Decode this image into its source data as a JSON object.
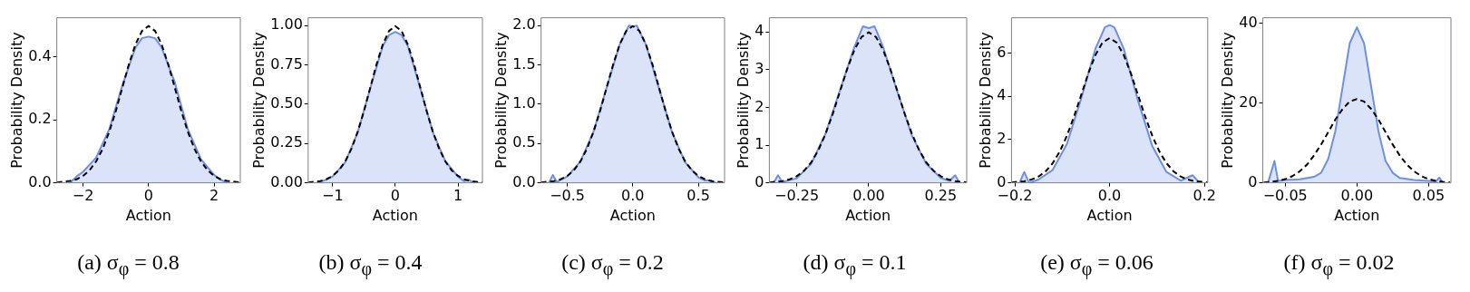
{
  "chart_data": [
    {
      "type": "area",
      "title": "(a) σ$_{φ}$ = 0.8",
      "xlabel": "Action",
      "ylabel": "Probability Density",
      "xlim": [
        -2.8,
        2.8
      ],
      "ylim": [
        0,
        0.525
      ],
      "xticks": [
        {
          "value": -2,
          "label": "−2"
        },
        0,
        2
      ],
      "yticks": [
        {
          "value": 0,
          "label": "0.0"
        },
        0.2,
        0.4
      ],
      "series": [
        {
          "type": "area",
          "color": "#6e8fe6",
          "x": [
            -2.4,
            -2.2,
            -2.0,
            -1.6,
            -1.2,
            -0.8,
            -0.4,
            -0.2,
            0,
            0.2,
            0.4,
            0.8,
            1.2,
            1.6,
            2.0,
            2.2,
            2.4
          ],
          "values": [
            0,
            0.02,
            0.035,
            0.08,
            0.17,
            0.31,
            0.43,
            0.46,
            0.465,
            0.46,
            0.43,
            0.32,
            0.17,
            0.075,
            0.025,
            0.01,
            0
          ]
        },
        {
          "type": "line",
          "color": "#000000",
          "line_style": "dashed",
          "x": [
            -2.8,
            -2.4,
            -2.2,
            -2.0,
            -1.8,
            -1.6,
            -1.4,
            -1.2,
            -1.0,
            -0.8,
            -0.6,
            -0.4,
            -0.2,
            0,
            0.2,
            0.4,
            0.6,
            0.8,
            1.0,
            1.2,
            1.4,
            1.6,
            1.8,
            2.0,
            2.2,
            2.4,
            2.8
          ],
          "values": [
            0.001,
            0.006,
            0.011,
            0.022,
            0.04,
            0.068,
            0.108,
            0.162,
            0.228,
            0.303,
            0.377,
            0.44,
            0.483,
            0.499,
            0.483,
            0.44,
            0.377,
            0.303,
            0.228,
            0.162,
            0.108,
            0.068,
            0.04,
            0.022,
            0.011,
            0.006,
            0.001
          ]
        }
      ]
    },
    {
      "type": "area",
      "title": "(b) σ$_{φ}$ = 0.4",
      "xlabel": "Action",
      "ylabel": "Probability Density",
      "xlim": [
        -1.39,
        1.39
      ],
      "ylim": [
        0,
        1.05
      ],
      "xticks": [
        {
          "value": -1,
          "label": "−1"
        },
        0,
        1
      ],
      "yticks": [
        {
          "value": 0,
          "label": "0.00"
        },
        0.25,
        {
          "value": 0.5,
          "label": "0.50"
        },
        0.75,
        {
          "value": 1,
          "label": "1.00"
        }
      ],
      "series": [
        {
          "type": "area",
          "color": "#6e8fe6",
          "x": [
            -1.25,
            -1.1,
            -1.0,
            -0.8,
            -0.6,
            -0.4,
            -0.2,
            -0.1,
            0,
            0.1,
            0.2,
            0.4,
            0.6,
            0.8,
            1.0,
            1.1,
            1.17,
            1.25
          ],
          "values": [
            0,
            0.02,
            0.04,
            0.13,
            0.32,
            0.6,
            0.87,
            0.94,
            0.96,
            0.94,
            0.87,
            0.6,
            0.32,
            0.135,
            0.04,
            0.01,
            0.02,
            0
          ]
        },
        {
          "type": "line",
          "color": "#000000",
          "line_style": "dashed",
          "x": [
            -1.39,
            -1.2,
            -1.1,
            -1.0,
            -0.9,
            -0.8,
            -0.7,
            -0.6,
            -0.5,
            -0.4,
            -0.3,
            -0.2,
            -0.1,
            0,
            0.1,
            0.2,
            0.3,
            0.4,
            0.5,
            0.6,
            0.7,
            0.8,
            0.9,
            1.0,
            1.1,
            1.2,
            1.39
          ],
          "values": [
            0.002,
            0.011,
            0.023,
            0.044,
            0.079,
            0.135,
            0.216,
            0.324,
            0.456,
            0.605,
            0.753,
            0.88,
            0.966,
            0.997,
            0.966,
            0.88,
            0.753,
            0.605,
            0.456,
            0.324,
            0.216,
            0.135,
            0.079,
            0.044,
            0.023,
            0.011,
            0.002
          ]
        }
      ]
    },
    {
      "type": "area",
      "title": "(c) σ$_{φ}$ = 0.2",
      "xlabel": "Action",
      "ylabel": "Probability Density",
      "xlim": [
        -0.7,
        0.7
      ],
      "ylim": [
        0,
        2.1
      ],
      "xticks": [
        {
          "value": -0.5,
          "label": "−0.5"
        },
        {
          "value": 0,
          "label": "0.0"
        },
        0.5
      ],
      "yticks": [
        {
          "value": 0,
          "label": "0.0"
        },
        0.5,
        {
          "value": 1,
          "label": "1.0"
        },
        1.5,
        {
          "value": 2,
          "label": "2.0"
        }
      ],
      "series": [
        {
          "type": "area",
          "color": "#6e8fe6",
          "x": [
            -0.64,
            -0.61,
            -0.58,
            -0.5,
            -0.4,
            -0.3,
            -0.2,
            -0.1,
            -0.03,
            0,
            0.03,
            0.1,
            0.2,
            0.3,
            0.4,
            0.5,
            0.55,
            0.6,
            0.63
          ],
          "values": [
            0,
            0.1,
            0.01,
            0.08,
            0.27,
            0.65,
            1.21,
            1.76,
            2.0,
            1.99,
            2.0,
            1.76,
            1.2,
            0.64,
            0.26,
            0.07,
            0.03,
            0.03,
            0
          ]
        },
        {
          "type": "line",
          "color": "#000000",
          "line_style": "dashed",
          "x": [
            -0.7,
            -0.6,
            -0.55,
            -0.5,
            -0.45,
            -0.4,
            -0.35,
            -0.3,
            -0.25,
            -0.2,
            -0.15,
            -0.1,
            -0.05,
            0,
            0.05,
            0.1,
            0.15,
            0.2,
            0.25,
            0.3,
            0.35,
            0.4,
            0.45,
            0.5,
            0.55,
            0.6,
            0.7
          ],
          "values": [
            0.004,
            0.022,
            0.045,
            0.088,
            0.159,
            0.27,
            0.432,
            0.648,
            0.913,
            1.21,
            1.506,
            1.761,
            1.934,
            1.995,
            1.934,
            1.761,
            1.506,
            1.21,
            0.913,
            0.648,
            0.432,
            0.27,
            0.159,
            0.088,
            0.045,
            0.022,
            0.004
          ]
        }
      ]
    },
    {
      "type": "area",
      "title": "(d) σ$_{φ}$ = 0.1",
      "xlabel": "Action",
      "ylabel": "Probability Density",
      "xlim": [
        -0.345,
        0.34
      ],
      "ylim": [
        0,
        4.375
      ],
      "xticks": [
        {
          "value": -0.25,
          "label": "−0.25"
        },
        {
          "value": 0,
          "label": "0.00"
        },
        0.25
      ],
      "yticks": [
        0,
        1,
        2,
        3,
        4
      ],
      "series": [
        {
          "type": "area",
          "color": "#6e8fe6",
          "x": [
            -0.33,
            -0.315,
            -0.3,
            -0.25,
            -0.2,
            -0.15,
            -0.1,
            -0.05,
            -0.02,
            0,
            0.02,
            0.05,
            0.1,
            0.15,
            0.2,
            0.25,
            0.28,
            0.3,
            0.315
          ],
          "values": [
            0,
            0.2,
            0.02,
            0.12,
            0.5,
            1.3,
            2.45,
            3.6,
            4.15,
            4.1,
            4.15,
            3.6,
            2.4,
            1.25,
            0.5,
            0.13,
            0.05,
            0.2,
            0
          ]
        },
        {
          "type": "line",
          "color": "#000000",
          "line_style": "dashed",
          "x": [
            -0.345,
            -0.3,
            -0.275,
            -0.25,
            -0.225,
            -0.2,
            -0.175,
            -0.15,
            -0.125,
            -0.1,
            -0.075,
            -0.05,
            -0.025,
            0,
            0.025,
            0.05,
            0.075,
            0.1,
            0.125,
            0.15,
            0.175,
            0.2,
            0.225,
            0.25,
            0.275,
            0.3,
            0.34
          ],
          "values": [
            0.01,
            0.044,
            0.091,
            0.175,
            0.318,
            0.54,
            0.863,
            1.296,
            1.827,
            2.42,
            3.012,
            3.521,
            3.867,
            3.99,
            3.867,
            3.521,
            3.012,
            2.42,
            1.827,
            1.296,
            0.863,
            0.54,
            0.318,
            0.175,
            0.091,
            0.044,
            0.01
          ]
        }
      ]
    },
    {
      "type": "area",
      "title": "(e) σ$_{φ}$ = 0.06",
      "xlabel": "Action",
      "ylabel": "Probability Density",
      "xlim": [
        -0.207,
        0.207
      ],
      "ylim": [
        0,
        7.64
      ],
      "xticks": [
        {
          "value": -0.2,
          "label": "−0.2"
        },
        {
          "value": 0,
          "label": "0.0"
        },
        0.2
      ],
      "yticks": [
        0,
        2,
        4,
        6
      ],
      "series": [
        {
          "type": "area",
          "color": "#6e8fe6",
          "x": [
            -0.19,
            -0.18,
            -0.17,
            -0.15,
            -0.12,
            -0.09,
            -0.06,
            -0.03,
            -0.01,
            0,
            0.01,
            0.03,
            0.06,
            0.09,
            0.12,
            0.15,
            0.175,
            0.19
          ],
          "values": [
            0,
            0.5,
            0,
            0.15,
            0.6,
            1.8,
            3.9,
            6.2,
            7.2,
            7.3,
            7.2,
            6.2,
            3.8,
            1.7,
            0.5,
            0.1,
            0.35,
            0
          ]
        },
        {
          "type": "line",
          "color": "#000000",
          "line_style": "dashed",
          "x": [
            -0.207,
            -0.18,
            -0.165,
            -0.15,
            -0.135,
            -0.12,
            -0.105,
            -0.09,
            -0.075,
            -0.06,
            -0.045,
            -0.03,
            -0.015,
            0,
            0.015,
            0.03,
            0.045,
            0.06,
            0.075,
            0.09,
            0.105,
            0.12,
            0.135,
            0.15,
            0.165,
            0.18,
            0.207
          ],
          "values": [
            0.02,
            0.07,
            0.15,
            0.29,
            0.53,
            0.91,
            1.45,
            2.18,
            3.07,
            4.06,
            5.06,
            5.91,
            6.49,
            6.7,
            6.49,
            5.91,
            5.06,
            4.06,
            3.07,
            2.18,
            1.45,
            0.91,
            0.53,
            0.29,
            0.15,
            0.07,
            0.02
          ]
        }
      ]
    },
    {
      "type": "area",
      "title": "(f) σ$_{φ}$ = 0.02",
      "xlabel": "Action",
      "ylabel": "Probability Density",
      "xlim": [
        -0.0656,
        0.0656
      ],
      "ylim": [
        0,
        41.4
      ],
      "xticks": [
        {
          "value": -0.05,
          "label": "−0.05"
        },
        {
          "value": 0,
          "label": "0.00"
        },
        0.05
      ],
      "yticks": [
        0,
        20,
        40
      ],
      "series": [
        {
          "type": "area",
          "color": "#6e8fe6",
          "x": [
            -0.062,
            -0.0575,
            -0.055,
            -0.05,
            -0.04,
            -0.03,
            -0.025,
            -0.02,
            -0.015,
            -0.01,
            -0.005,
            0,
            0.005,
            0.01,
            0.015,
            0.02,
            0.025,
            0.03,
            0.04,
            0.05,
            0.055,
            0.0575,
            0.06
          ],
          "values": [
            0,
            5.5,
            0.5,
            0.7,
            0.9,
            1.5,
            2.5,
            6,
            13,
            24,
            35,
            39,
            35,
            24,
            13,
            5.5,
            2.5,
            1.2,
            0.7,
            0.5,
            0.3,
            1.3,
            0
          ]
        },
        {
          "type": "line",
          "color": "#000000",
          "line_style": "dashed",
          "x": [
            -0.065,
            -0.06,
            -0.055,
            -0.05,
            -0.045,
            -0.04,
            -0.035,
            -0.03,
            -0.025,
            -0.02,
            -0.015,
            -0.01,
            -0.005,
            0,
            0.005,
            0.01,
            0.015,
            0.02,
            0.025,
            0.03,
            0.035,
            0.04,
            0.045,
            0.05,
            0.055,
            0.06,
            0.065
          ],
          "values": [
            0.1,
            0.23,
            0.48,
            0.92,
            1.67,
            2.84,
            4.5,
            6.8,
            9.6,
            12.7,
            15.9,
            18.5,
            20.4,
            21,
            20.4,
            18.5,
            15.9,
            12.7,
            9.6,
            6.8,
            4.5,
            2.84,
            1.67,
            0.92,
            0.48,
            0.23,
            0.1
          ]
        }
      ]
    }
  ]
}
